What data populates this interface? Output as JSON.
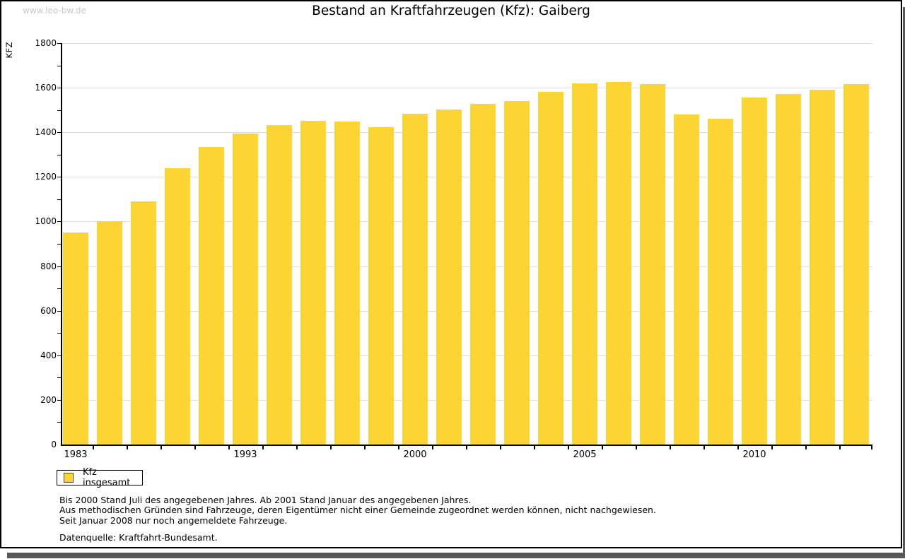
{
  "watermark": "www.leo-bw.de",
  "title": "Bestand an Kraftfahrzeugen (Kfz): Gaiberg",
  "chart_data": {
    "type": "bar",
    "title": "Bestand an Kraftfahrzeugen (Kfz): Gaiberg",
    "xlabel": "",
    "ylabel": "KFZ",
    "ylim": [
      0,
      1800
    ],
    "y_major_step": 200,
    "y_minor_step": 100,
    "grid": "horizontal light gray lines at every 200",
    "bar_color": "#FCD434",
    "legend_position": "bottom-left",
    "legend": [
      {
        "label": "Kfz insgesamt",
        "color": "#FCD434"
      }
    ],
    "x_tick_labels": [
      {
        "index": 0,
        "label": "1983"
      },
      {
        "index": 5,
        "label": "1993"
      },
      {
        "index": 10,
        "label": "2000"
      },
      {
        "index": 15,
        "label": "2005"
      },
      {
        "index": 20,
        "label": "2010"
      }
    ],
    "values": [
      950,
      1003,
      1091,
      1238,
      1333,
      1394,
      1433,
      1453,
      1447,
      1424,
      1482,
      1503,
      1529,
      1541,
      1580,
      1620,
      1625,
      1615,
      1479,
      1460,
      1556,
      1573,
      1592,
      1615
    ]
  },
  "footnotes": [
    "Bis 2000 Stand Juli des angegebenen Jahres. Ab 2001 Stand Januar des angegebenen Jahres.",
    "Aus methodischen Gründen sind Fahrzeuge, deren Eigentümer nicht einer Gemeinde zugeordnet werden können, nicht nachgewiesen.",
    "Seit Januar 2008 nur noch angemeldete Fahrzeuge."
  ],
  "source": "Datenquelle: Kraftfahrt-Bundesamt."
}
